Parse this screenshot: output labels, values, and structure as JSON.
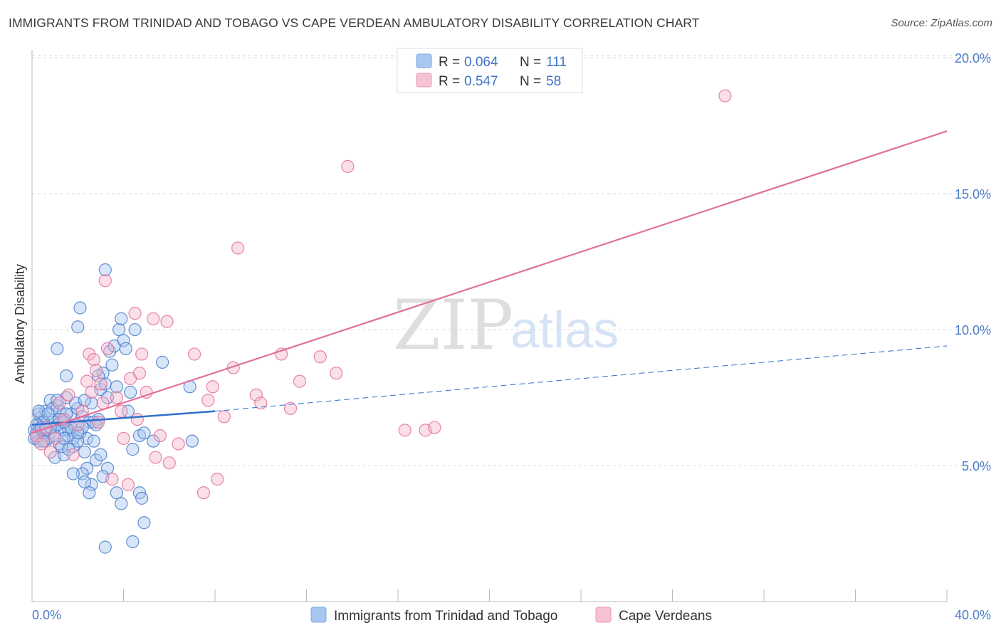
{
  "title": "IMMIGRANTS FROM TRINIDAD AND TOBAGO VS CAPE VERDEAN AMBULATORY DISABILITY CORRELATION CHART",
  "source": "Source: ZipAtlas.com",
  "watermark": {
    "part1": "ZIP",
    "part2": "atlas"
  },
  "colors": {
    "blue": "#4a7cc9",
    "blue_fill": "#a8c6f0",
    "pink": "#e0709a",
    "pink_fill": "#f5b8cc",
    "grid": "#d8d8d8"
  },
  "legend": {
    "r_label": "R =",
    "n_label": "N =",
    "series": [
      {
        "r": "0.064",
        "n": "111"
      },
      {
        "r": "0.547",
        "n": "58"
      }
    ]
  },
  "chart_data": {
    "type": "scatter",
    "title": "IMMIGRANTS FROM TRINIDAD AND TOBAGO VS CAPE VERDEAN AMBULATORY DISABILITY CORRELATION CHART",
    "xlabel": "",
    "ylabel": "Ambulatory Disability",
    "xlim": [
      0,
      40
    ],
    "ylim": [
      0,
      20.5
    ],
    "x_tick_labels": {
      "min": "0.0%",
      "max": "40.0%"
    },
    "y_ticks": [
      5,
      10,
      15,
      20
    ],
    "y_tick_labels": [
      "5.0%",
      "10.0%",
      "15.0%",
      "20.0%"
    ],
    "grid": true,
    "series": [
      {
        "name": "Immigrants from Trinidad and Tobago",
        "color": "#4a7cc9",
        "trend": {
          "x": [
            0,
            8
          ],
          "y": [
            6.5,
            7.0
          ],
          "dashed_extension": {
            "x": [
              8,
              40
            ],
            "y": [
              7.0,
              9.4
            ]
          }
        },
        "points": [
          [
            0.1,
            6.3
          ],
          [
            0.2,
            6.0
          ],
          [
            0.3,
            6.5
          ],
          [
            0.4,
            6.8
          ],
          [
            0.2,
            6.2
          ],
          [
            0.5,
            6.1
          ],
          [
            0.6,
            7.0
          ],
          [
            0.8,
            7.4
          ],
          [
            0.3,
            5.9
          ],
          [
            0.9,
            6.6
          ],
          [
            1.0,
            6.4
          ],
          [
            1.1,
            7.2
          ],
          [
            0.7,
            6.0
          ],
          [
            1.2,
            5.8
          ],
          [
            1.3,
            6.7
          ],
          [
            1.4,
            6.3
          ],
          [
            1.5,
            7.5
          ],
          [
            1.6,
            6.1
          ],
          [
            1.7,
            6.9
          ],
          [
            1.8,
            5.7
          ],
          [
            1.9,
            6.5
          ],
          [
            2.0,
            7.1
          ],
          [
            2.1,
            6.2
          ],
          [
            2.2,
            6.8
          ],
          [
            2.3,
            5.5
          ],
          [
            2.4,
            6.0
          ],
          [
            2.5,
            6.6
          ],
          [
            1.0,
            5.3
          ],
          [
            1.2,
            7.0
          ],
          [
            1.4,
            5.4
          ],
          [
            1.6,
            6.3
          ],
          [
            1.8,
            6.0
          ],
          [
            2.0,
            5.9
          ],
          [
            2.2,
            6.4
          ],
          [
            2.6,
            7.3
          ],
          [
            2.7,
            5.9
          ],
          [
            2.8,
            5.2
          ],
          [
            2.9,
            6.7
          ],
          [
            3.0,
            7.8
          ],
          [
            3.1,
            8.4
          ],
          [
            3.2,
            8.0
          ],
          [
            3.3,
            7.5
          ],
          [
            3.4,
            9.2
          ],
          [
            3.5,
            8.7
          ],
          [
            3.6,
            9.4
          ],
          [
            3.7,
            7.9
          ],
          [
            3.8,
            10.0
          ],
          [
            3.9,
            10.4
          ],
          [
            4.0,
            9.6
          ],
          [
            4.1,
            9.3
          ],
          [
            4.2,
            7.0
          ],
          [
            4.3,
            7.7
          ],
          [
            4.4,
            5.6
          ],
          [
            4.5,
            10.0
          ],
          [
            4.7,
            6.1
          ],
          [
            4.9,
            6.2
          ],
          [
            2.0,
            10.1
          ],
          [
            2.1,
            10.8
          ],
          [
            1.1,
            9.3
          ],
          [
            1.5,
            8.3
          ],
          [
            3.2,
            12.2
          ],
          [
            3.0,
            5.4
          ],
          [
            3.3,
            4.9
          ],
          [
            3.1,
            4.6
          ],
          [
            2.4,
            4.9
          ],
          [
            2.6,
            4.3
          ],
          [
            2.2,
            4.7
          ],
          [
            2.3,
            4.4
          ],
          [
            1.8,
            4.7
          ],
          [
            2.5,
            4.0
          ],
          [
            3.7,
            4.0
          ],
          [
            3.9,
            3.6
          ],
          [
            4.7,
            4.0
          ],
          [
            4.8,
            3.8
          ],
          [
            4.9,
            2.9
          ],
          [
            3.2,
            2.0
          ],
          [
            4.4,
            2.2
          ],
          [
            5.7,
            8.8
          ],
          [
            6.9,
            7.9
          ],
          [
            7.0,
            5.9
          ],
          [
            0.3,
            6.9
          ],
          [
            0.5,
            6.6
          ],
          [
            0.6,
            5.9
          ],
          [
            0.8,
            6.2
          ],
          [
            0.9,
            7.1
          ],
          [
            1.0,
            6.1
          ],
          [
            1.1,
            6.5
          ],
          [
            1.3,
            5.7
          ],
          [
            1.4,
            6.0
          ],
          [
            1.5,
            6.9
          ],
          [
            1.7,
            6.4
          ],
          [
            1.9,
            7.3
          ],
          [
            0.2,
            6.5
          ],
          [
            0.4,
            6.4
          ],
          [
            0.1,
            6.0
          ],
          [
            0.3,
            7.0
          ],
          [
            0.7,
            6.9
          ],
          [
            0.6,
            6.3
          ],
          [
            0.5,
            5.9
          ],
          [
            2.7,
            6.6
          ],
          [
            2.8,
            6.5
          ],
          [
            2.9,
            8.3
          ],
          [
            1.2,
            6.7
          ],
          [
            1.6,
            5.6
          ],
          [
            5.3,
            5.9
          ],
          [
            1.4,
            6.6
          ],
          [
            2.0,
            6.2
          ],
          [
            0.8,
            6.4
          ],
          [
            1.1,
            7.4
          ],
          [
            2.3,
            7.4
          ]
        ]
      },
      {
        "name": "Cape Verdeans",
        "color": "#e0709a",
        "trend": {
          "x": [
            0,
            40
          ],
          "y": [
            6.2,
            17.3
          ]
        },
        "points": [
          [
            0.2,
            6.1
          ],
          [
            0.4,
            5.8
          ],
          [
            0.6,
            6.4
          ],
          [
            0.8,
            5.5
          ],
          [
            1.0,
            6.0
          ],
          [
            1.2,
            7.3
          ],
          [
            1.4,
            6.7
          ],
          [
            1.6,
            7.6
          ],
          [
            1.8,
            5.4
          ],
          [
            2.0,
            6.5
          ],
          [
            2.2,
            7.0
          ],
          [
            2.4,
            8.1
          ],
          [
            2.5,
            9.1
          ],
          [
            2.6,
            7.7
          ],
          [
            2.7,
            8.9
          ],
          [
            2.8,
            8.5
          ],
          [
            2.9,
            6.6
          ],
          [
            3.0,
            8.0
          ],
          [
            3.1,
            7.3
          ],
          [
            3.2,
            11.8
          ],
          [
            3.3,
            9.3
          ],
          [
            3.5,
            4.5
          ],
          [
            3.7,
            7.5
          ],
          [
            3.9,
            7.0
          ],
          [
            4.0,
            6.0
          ],
          [
            4.2,
            4.3
          ],
          [
            4.3,
            8.2
          ],
          [
            4.5,
            10.6
          ],
          [
            4.6,
            6.7
          ],
          [
            4.7,
            8.4
          ],
          [
            4.8,
            9.1
          ],
          [
            5.0,
            7.7
          ],
          [
            5.3,
            10.4
          ],
          [
            5.4,
            5.3
          ],
          [
            5.6,
            6.1
          ],
          [
            5.9,
            10.3
          ],
          [
            6.0,
            5.1
          ],
          [
            6.4,
            5.8
          ],
          [
            7.1,
            9.1
          ],
          [
            7.5,
            4.0
          ],
          [
            7.7,
            7.4
          ],
          [
            7.9,
            7.9
          ],
          [
            8.1,
            4.5
          ],
          [
            8.4,
            6.8
          ],
          [
            8.8,
            8.6
          ],
          [
            9.0,
            13.0
          ],
          [
            9.8,
            7.6
          ],
          [
            10.0,
            7.3
          ],
          [
            10.9,
            9.1
          ],
          [
            11.3,
            7.1
          ],
          [
            11.7,
            8.1
          ],
          [
            12.6,
            9.0
          ],
          [
            13.3,
            8.4
          ],
          [
            13.8,
            16.0
          ],
          [
            16.3,
            6.3
          ],
          [
            17.2,
            6.3
          ],
          [
            17.6,
            6.4
          ],
          [
            30.3,
            18.6
          ]
        ]
      }
    ]
  },
  "bottom_legend": [
    "Immigrants from Trinidad and Tobago",
    "Cape Verdeans"
  ]
}
